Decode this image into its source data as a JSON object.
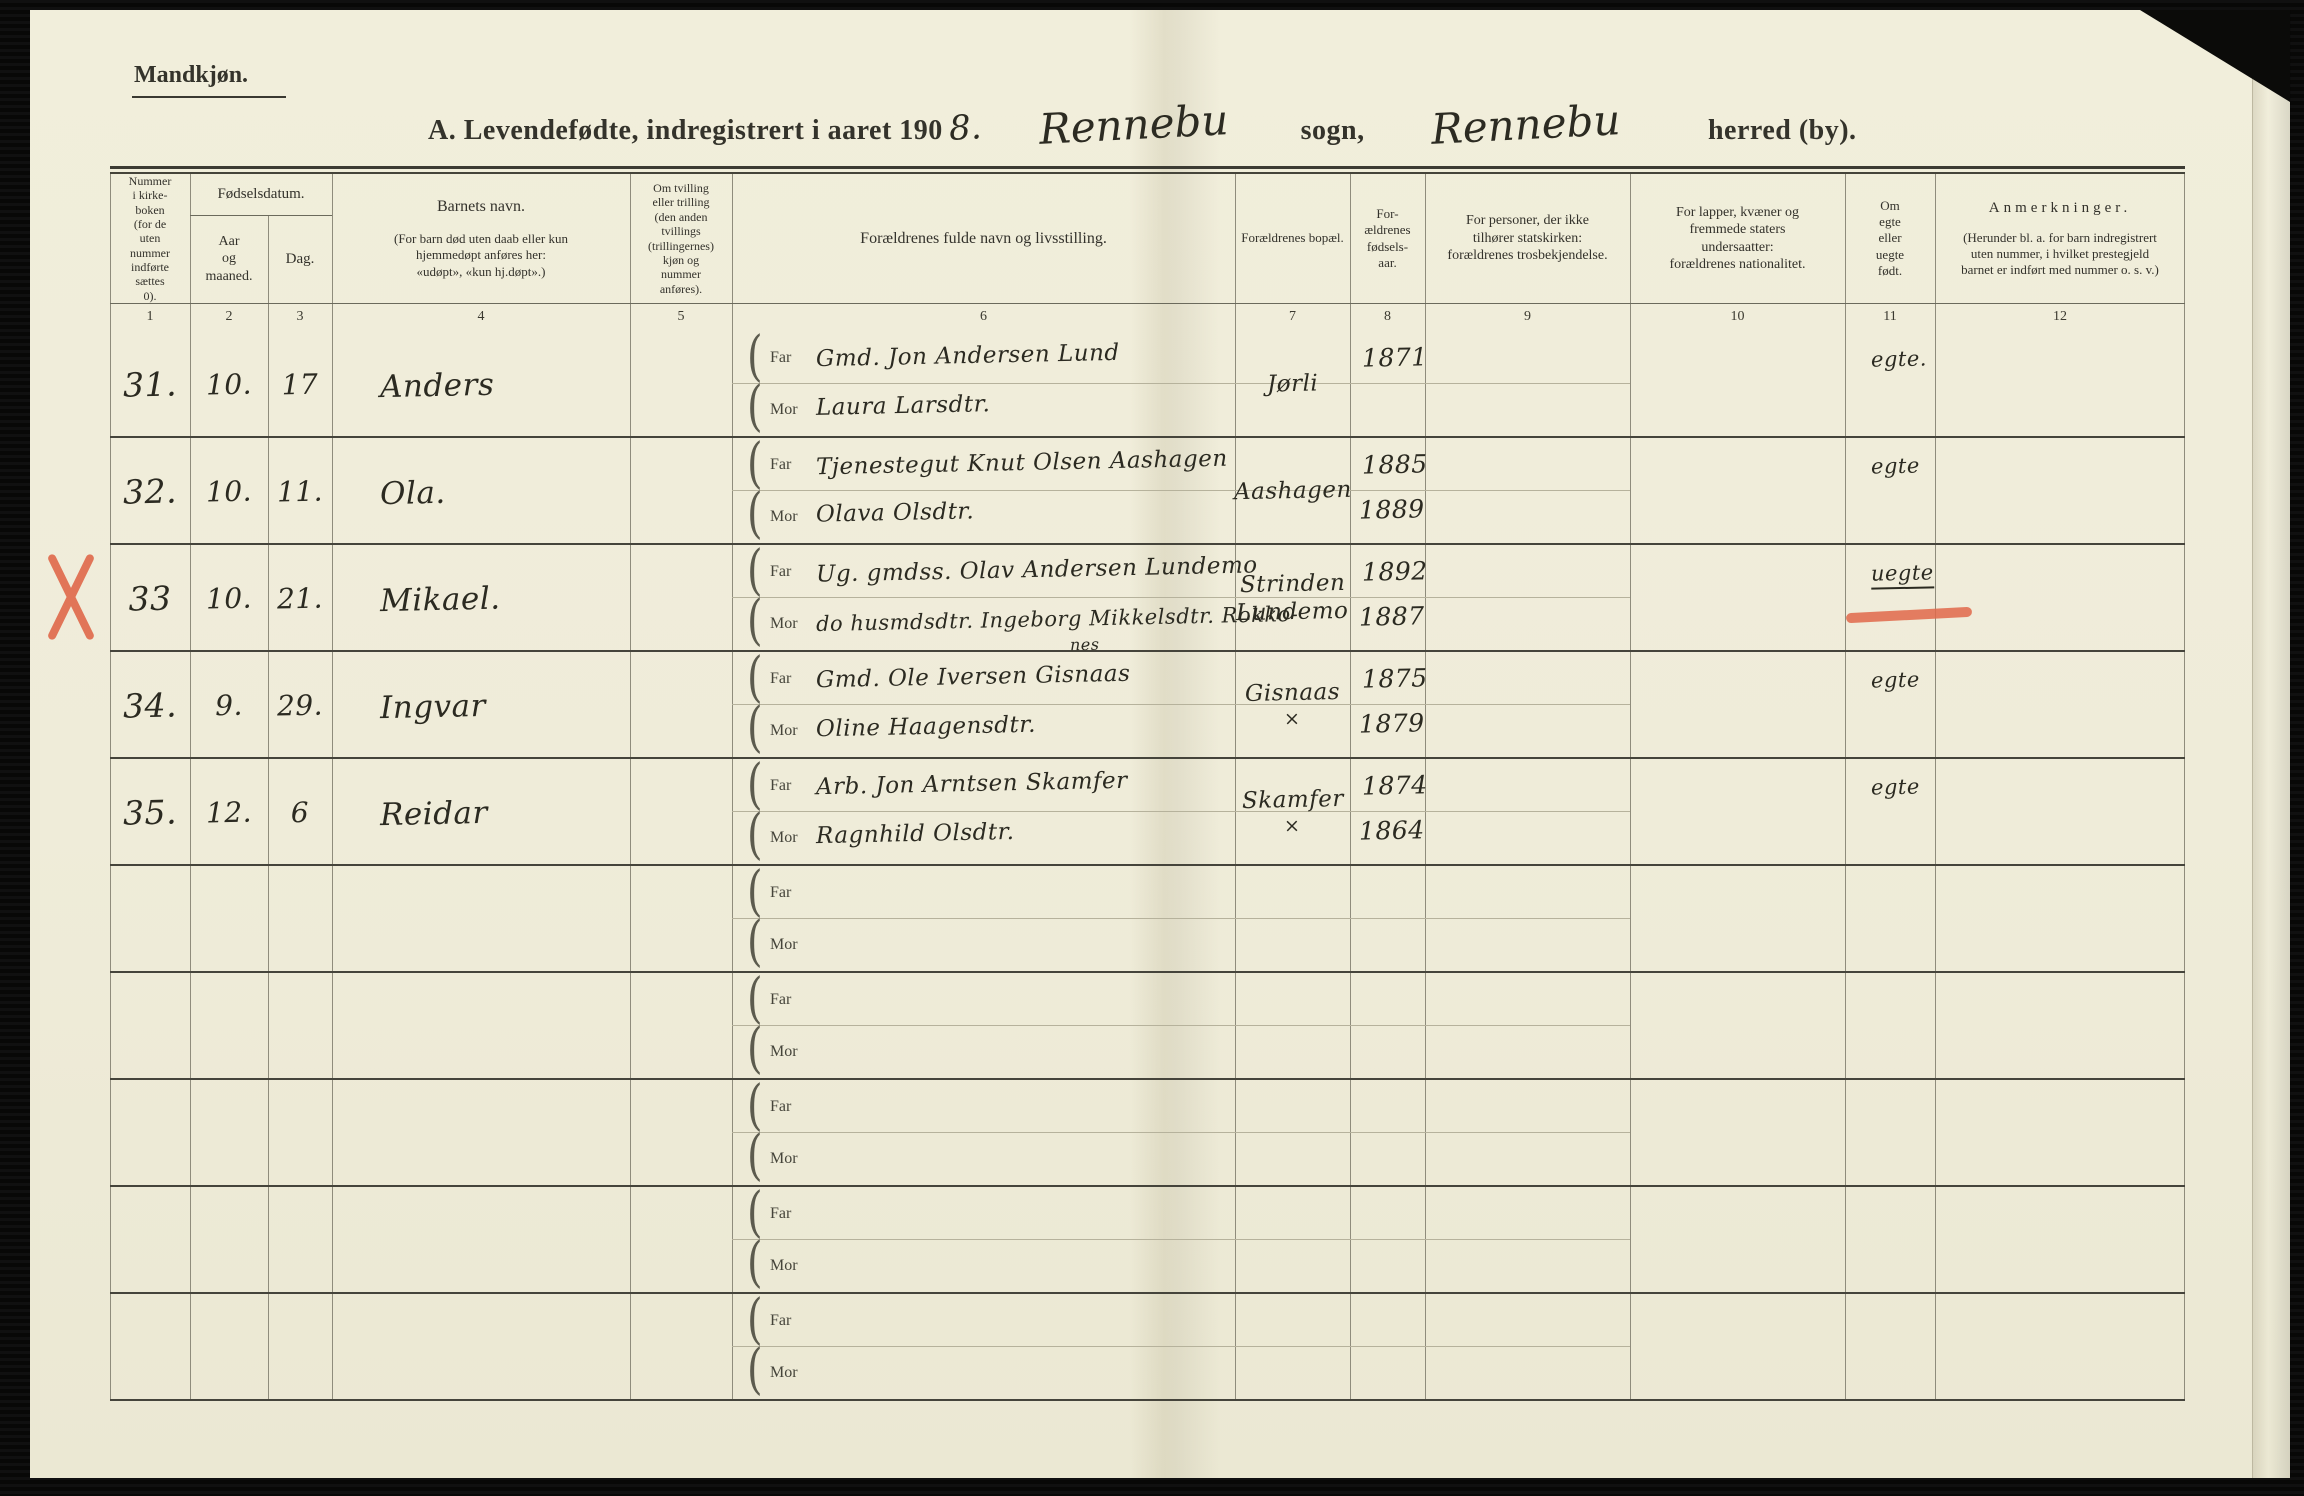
{
  "page": {
    "gender_heading": "Mandkjøn.",
    "title": {
      "printed_prefix": "A.  Levendefødte, indregistrert i aaret 190",
      "year_handwritten": "8.",
      "parish_handwritten": "Rennebu",
      "sogn_label": "sogn,",
      "district_handwritten": "Rennebu",
      "herred_label": "herred (by)."
    }
  },
  "labels": {
    "far": "Far",
    "mor": "Mor"
  },
  "headers": {
    "col1": "Nummer\ni kirke-\nboken\n(for de\nuten\nnummer\nindførte\nsættes\n0).",
    "birthdate": "Fødselsdatum.",
    "year_month": "Aar\nog\nmaaned.",
    "day": "Dag.",
    "child_name_title": "Barnets navn.",
    "child_name_sub": "(For barn død uten daab eller kun\nhjemmedøpt anføres her:\n«udøpt», «kun hj.døpt».)",
    "twin": "Om tvilling\neller trilling\n(den anden\ntvillings\n(trillingernes)\nkjøn og\nnummer\nanføres).",
    "parents_name": "Forældrenes fulde navn og livsstilling.",
    "residence": "Forældrenes bopæl.",
    "parents_birthyear": "For-\nældrenes\nfødsels-\naar.",
    "religion": "For personer, der ikke\ntilhører statskirken:\nforældrenes trosbekjendelse.",
    "nationality": "For lapper, kvæner og\nfremmede staters\nundersaatter:\nforældrenes nationalitet.",
    "legitimacy": "Om\negte\neller\nuegte\nfødt.",
    "remarks_title": "Anmerkninger.",
    "remarks_sub": "(Herunder bl. a. for barn indregistrert\nuten nummer, i hvilket prestegjeld\nbarnet er indført med nummer o. s. v.)"
  },
  "column_numbers": [
    "1",
    "2",
    "3",
    "4",
    "5",
    "6",
    "7",
    "8",
    "9",
    "10",
    "11",
    "12"
  ],
  "rows": [
    {
      "number": "31.",
      "month": "10.",
      "day": "17",
      "name": "Anders",
      "far": "Gmd. Jon Andersen Lund",
      "mor": "Laura Larsdtr.",
      "mor2": "",
      "bopael1": "Jørli",
      "bopael2": "",
      "year_far": "1871",
      "year_mor": "",
      "egte": "egte."
    },
    {
      "number": "32.",
      "month": "10.",
      "day": "11.",
      "name": "Ola.",
      "far": "Tjenestegut Knut Olsen Aashagen",
      "mor": "Olava Olsdtr.",
      "mor2": "",
      "bopael1": "Aashagen",
      "bopael2": "",
      "year_far": "1885",
      "year_mor": "1889",
      "egte": "egte"
    },
    {
      "number": "33",
      "month": "10.",
      "day": "21.",
      "name": "Mikael.",
      "far": "Ug. gmdss. Olav Andersen Lundemo",
      "mor": "do husmdsdtr. Ingeborg Mikkelsdtr. Rokko-",
      "mor2": "nes",
      "bopael1": "Strinden",
      "bopael2": "Lundemo",
      "year_far": "1892",
      "year_mor": "1887",
      "egte": "uegte"
    },
    {
      "number": "34.",
      "month": "9.",
      "day": "29.",
      "name": "Ingvar",
      "far": "Gmd. Ole Iversen Gisnaas",
      "mor": "Oline Haagensdtr.",
      "mor2": "",
      "bopael1": "Gisnaas",
      "bopael2": "×",
      "year_far": "1875",
      "year_mor": "1879",
      "egte": "egte"
    },
    {
      "number": "35.",
      "month": "12.",
      "day": "6",
      "name": "Reidar",
      "far": "Arb. Jon Arntsen Skamfer",
      "mor": "Ragnhild Olsdtr.",
      "mor2": "",
      "bopael1": "Skamfer",
      "bopael2": "×",
      "year_far": "1874",
      "year_mor": "1864",
      "egte": "egte"
    },
    {
      "number": "",
      "month": "",
      "day": "",
      "name": "",
      "far": "",
      "mor": "",
      "mor2": "",
      "bopael1": "",
      "bopael2": "",
      "year_far": "",
      "year_mor": "",
      "egte": ""
    },
    {
      "number": "",
      "month": "",
      "day": "",
      "name": "",
      "far": "",
      "mor": "",
      "mor2": "",
      "bopael1": "",
      "bopael2": "",
      "year_far": "",
      "year_mor": "",
      "egte": ""
    },
    {
      "number": "",
      "month": "",
      "day": "",
      "name": "",
      "far": "",
      "mor": "",
      "mor2": "",
      "bopael1": "",
      "bopael2": "",
      "year_far": "",
      "year_mor": "",
      "egte": ""
    },
    {
      "number": "",
      "month": "",
      "day": "",
      "name": "",
      "far": "",
      "mor": "",
      "mor2": "",
      "bopael1": "",
      "bopael2": "",
      "year_far": "",
      "year_mor": "",
      "egte": ""
    },
    {
      "number": "",
      "month": "",
      "day": "",
      "name": "",
      "far": "",
      "mor": "",
      "mor2": "",
      "bopael1": "",
      "bopael2": "",
      "year_far": "",
      "year_mor": "",
      "egte": ""
    }
  ],
  "annotations": {
    "red_cross_margin_row": "33",
    "red_underline_text": "uegte",
    "red_color": "#e0694a"
  },
  "colors": {
    "paper": "#efecd9",
    "background": "#0b0b09",
    "printed_ink": "#33322b",
    "handwriting_ink": "#2b2a21",
    "grid_line": "#8f8c7c",
    "red_mark": "#e0694a"
  }
}
